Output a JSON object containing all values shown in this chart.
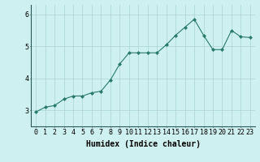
{
  "x": [
    0,
    1,
    2,
    3,
    4,
    5,
    6,
    7,
    8,
    9,
    10,
    11,
    12,
    13,
    14,
    15,
    16,
    17,
    18,
    19,
    20,
    21,
    22,
    23
  ],
  "y": [
    2.95,
    3.1,
    3.15,
    3.35,
    3.45,
    3.45,
    3.55,
    3.6,
    3.95,
    4.45,
    4.8,
    4.8,
    4.8,
    4.8,
    5.05,
    5.35,
    5.6,
    5.85,
    5.35,
    4.9,
    4.9,
    5.5,
    5.3,
    5.28
  ],
  "xlabel": "Humidex (Indice chaleur)",
  "ylim": [
    2.5,
    6.3
  ],
  "yticks": [
    3,
    4,
    5,
    6
  ],
  "bg_color": "#cff0f0",
  "line_color": "#2a7a6a",
  "marker_color": "#2a7a6a",
  "grid_color": "#aad4d4",
  "xlabel_fontsize": 7,
  "tick_fontsize": 6
}
